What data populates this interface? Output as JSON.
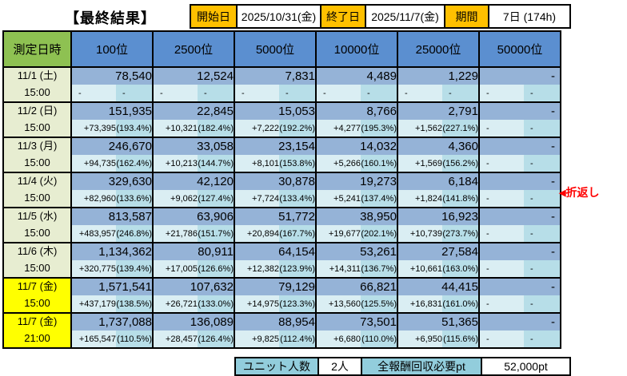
{
  "title": "【最終結果】",
  "header": {
    "start_label": "開始日",
    "start_value": "2025/10/31(金)",
    "end_label": "終了日",
    "end_value": "2025/11/7(金)",
    "period_label": "期間",
    "period_value": "7日 (174h)"
  },
  "table": {
    "corner_header": "測定日時",
    "columns": [
      "100位",
      "2500位",
      "5000位",
      "10000位",
      "25000位",
      "50000位"
    ],
    "rows": [
      {
        "date": "11/1 (土)",
        "time": "15:00",
        "highlight": false,
        "values": [
          "78,540",
          "12,524",
          "7,831",
          "4,489",
          "1,229",
          "-"
        ],
        "deltas": [
          [
            "-",
            "-"
          ],
          [
            "-",
            "-"
          ],
          [
            "-",
            "-"
          ],
          [
            "-",
            "-"
          ],
          [
            "-",
            "-"
          ],
          [
            "-",
            "-"
          ]
        ]
      },
      {
        "date": "11/2 (日)",
        "time": "15:00",
        "highlight": false,
        "values": [
          "151,935",
          "22,845",
          "15,053",
          "8,766",
          "2,791",
          "-"
        ],
        "deltas": [
          [
            "+73,395",
            "(193.4%)"
          ],
          [
            "+10,321",
            "(182.4%)"
          ],
          [
            "+7,222",
            "(192.2%)"
          ],
          [
            "+4,277",
            "(195.3%)"
          ],
          [
            "+1,562",
            "(227.1%)"
          ],
          [
            "-",
            "-"
          ]
        ]
      },
      {
        "date": "11/3 (月)",
        "time": "15:00",
        "highlight": false,
        "values": [
          "246,670",
          "33,058",
          "23,154",
          "14,032",
          "4,360",
          "-"
        ],
        "deltas": [
          [
            "+94,735",
            "(162.4%)"
          ],
          [
            "+10,213",
            "(144.7%)"
          ],
          [
            "+8,101",
            "(153.8%)"
          ],
          [
            "+5,266",
            "(160.1%)"
          ],
          [
            "+1,569",
            "(156.2%)"
          ],
          [
            "-",
            "-"
          ]
        ]
      },
      {
        "date": "11/4 (火)",
        "time": "15:00",
        "highlight": false,
        "values": [
          "329,630",
          "42,120",
          "30,878",
          "19,273",
          "6,184",
          "-"
        ],
        "deltas": [
          [
            "+82,960",
            "(133.6%)"
          ],
          [
            "+9,062",
            "(127.4%)"
          ],
          [
            "+7,724",
            "(133.4%)"
          ],
          [
            "+5,241",
            "(137.4%)"
          ],
          [
            "+1,824",
            "(141.8%)"
          ],
          [
            "-",
            "-"
          ]
        ]
      },
      {
        "date": "11/5 (水)",
        "time": "15:00",
        "highlight": false,
        "values": [
          "813,587",
          "63,906",
          "51,772",
          "38,950",
          "16,923",
          "-"
        ],
        "deltas": [
          [
            "+483,957",
            "(246.8%)"
          ],
          [
            "+21,786",
            "(151.7%)"
          ],
          [
            "+20,894",
            "(167.7%)"
          ],
          [
            "+19,677",
            "(202.1%)"
          ],
          [
            "+10,739",
            "(273.7%)"
          ],
          [
            "-",
            "-"
          ]
        ]
      },
      {
        "date": "11/6 (木)",
        "time": "15:00",
        "highlight": false,
        "values": [
          "1,134,362",
          "80,911",
          "64,154",
          "53,261",
          "27,584",
          "-"
        ],
        "deltas": [
          [
            "+320,775",
            "(139.4%)"
          ],
          [
            "+17,005",
            "(126.6%)"
          ],
          [
            "+12,382",
            "(123.9%)"
          ],
          [
            "+14,311",
            "(136.7%)"
          ],
          [
            "+10,661",
            "(163.0%)"
          ],
          [
            "-",
            "-"
          ]
        ]
      },
      {
        "date": "11/7 (金)",
        "time": "15:00",
        "highlight": true,
        "values": [
          "1,571,541",
          "107,632",
          "79,129",
          "66,821",
          "44,415",
          "-"
        ],
        "deltas": [
          [
            "+437,179",
            "(138.5%)"
          ],
          [
            "+26,721",
            "(133.0%)"
          ],
          [
            "+14,975",
            "(123.3%)"
          ],
          [
            "+13,560",
            "(125.5%)"
          ],
          [
            "+16,831",
            "(161.0%)"
          ],
          [
            "-",
            "-"
          ]
        ]
      },
      {
        "date": "11/7 (金)",
        "time": "21:00",
        "highlight": true,
        "values": [
          "1,737,088",
          "136,089",
          "88,954",
          "73,501",
          "51,365",
          "-"
        ],
        "deltas": [
          [
            "+165,547",
            "(110.5%)"
          ],
          [
            "+28,457",
            "(126.4%)"
          ],
          [
            "+9,825",
            "(112.4%)"
          ],
          [
            "+6,680",
            "(110.0%)"
          ],
          [
            "+6,950",
            "(115.6%)"
          ],
          [
            "-",
            "-"
          ]
        ]
      }
    ]
  },
  "annotation": {
    "arrow": "◀",
    "label": "折返し"
  },
  "footer": {
    "unit_label": "ユニット人数",
    "unit_value": "2人",
    "reward_label": "全報酬回収必要pt",
    "reward_value": "52,000pt"
  },
  "colors": {
    "label_orange": "#FFC000",
    "header_blue": "#5B8FD0",
    "value_blue": "#95B3D7",
    "delta_light_cyan": "#DAEEF3",
    "percent_light_blue": "#B7DEE8",
    "corner_green": "#8EC152",
    "date_pale_green": "#E7EDD1",
    "highlight_yellow": "#FFFF00",
    "footer_teal": "#92CDDC",
    "annotation_red": "#FF0000"
  }
}
